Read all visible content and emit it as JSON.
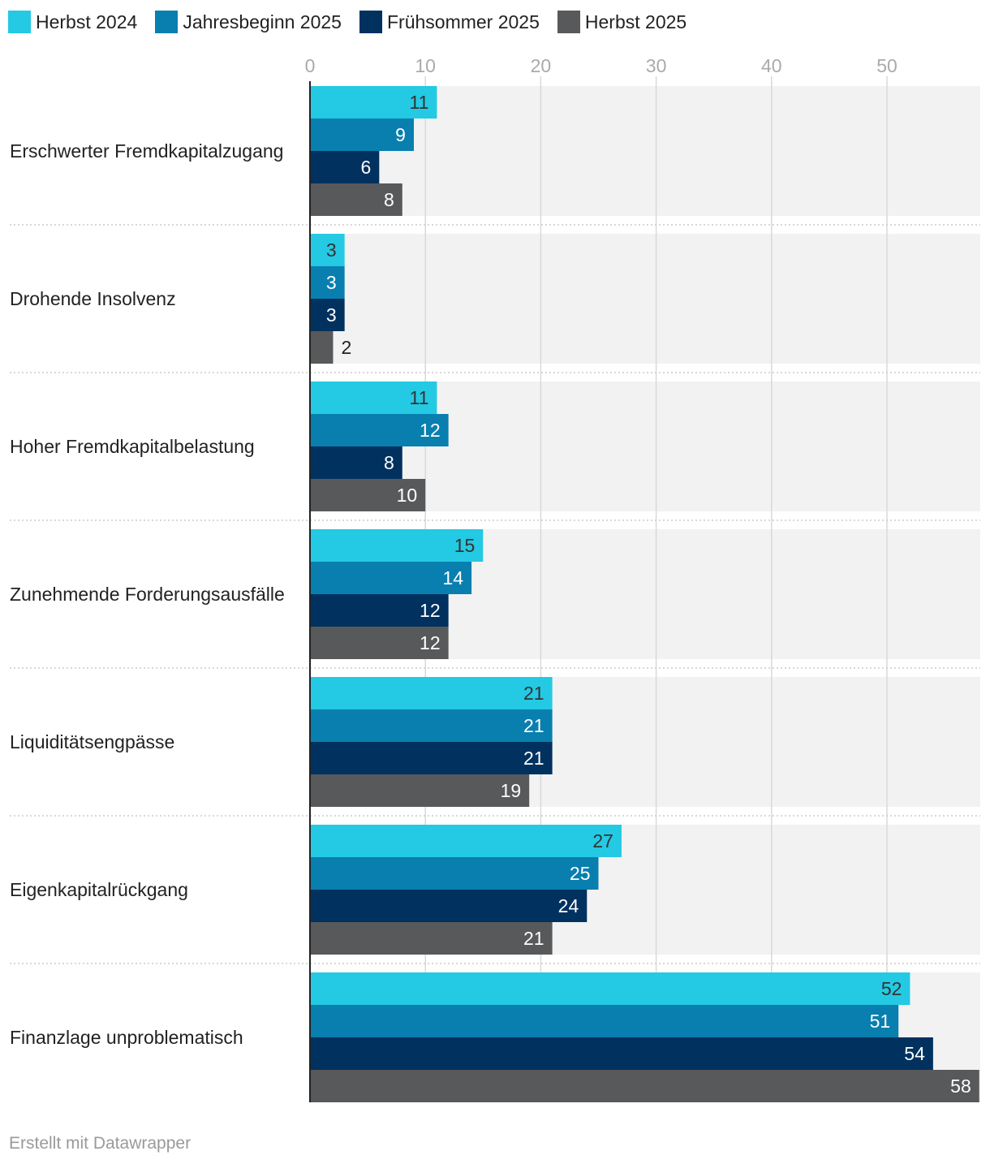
{
  "chart_data": {
    "type": "bar",
    "orientation": "horizontal",
    "series": [
      {
        "name": "Herbst 2024",
        "color": "#24c9e3",
        "label_color": "#333333",
        "values": [
          11,
          3,
          11,
          15,
          21,
          27,
          52
        ]
      },
      {
        "name": "Jahresbeginn 2025",
        "color": "#087faf",
        "label_color": "#ffffff",
        "values": [
          9,
          3,
          12,
          14,
          21,
          25,
          51
        ]
      },
      {
        "name": "Frühsommer 2025",
        "color": "#00315f",
        "label_color": "#ffffff",
        "values": [
          6,
          3,
          8,
          12,
          21,
          24,
          54
        ]
      },
      {
        "name": "Herbst 2025",
        "color": "#58595b",
        "label_color": "#ffffff",
        "values": [
          8,
          2,
          10,
          12,
          19,
          21,
          58
        ]
      }
    ],
    "categories": [
      "Erschwerter Fremdkapitalzugang",
      "Drohende Insolvenz",
      "Hoher Fremdkapitalbelastung",
      "Zunehmende Forderungsausfälle",
      "Liquiditätsengpässe",
      "Eigenkapitalrückgang",
      "Finanzlage unproblematisch"
    ],
    "x_ticks": [
      0,
      10,
      20,
      30,
      40,
      50
    ],
    "xlim": [
      0,
      58
    ],
    "grid": true,
    "legend_position": "top-left",
    "title": "",
    "xlabel": "",
    "ylabel": ""
  },
  "footer": {
    "credit": "Erstellt mit Datawrapper"
  },
  "colors": {
    "row_background": "#f2f2f2",
    "gridline": "#d9d9d9",
    "axis_line": "#222222",
    "tick_label": "#aaaaaa",
    "separator": "#cccccc"
  }
}
